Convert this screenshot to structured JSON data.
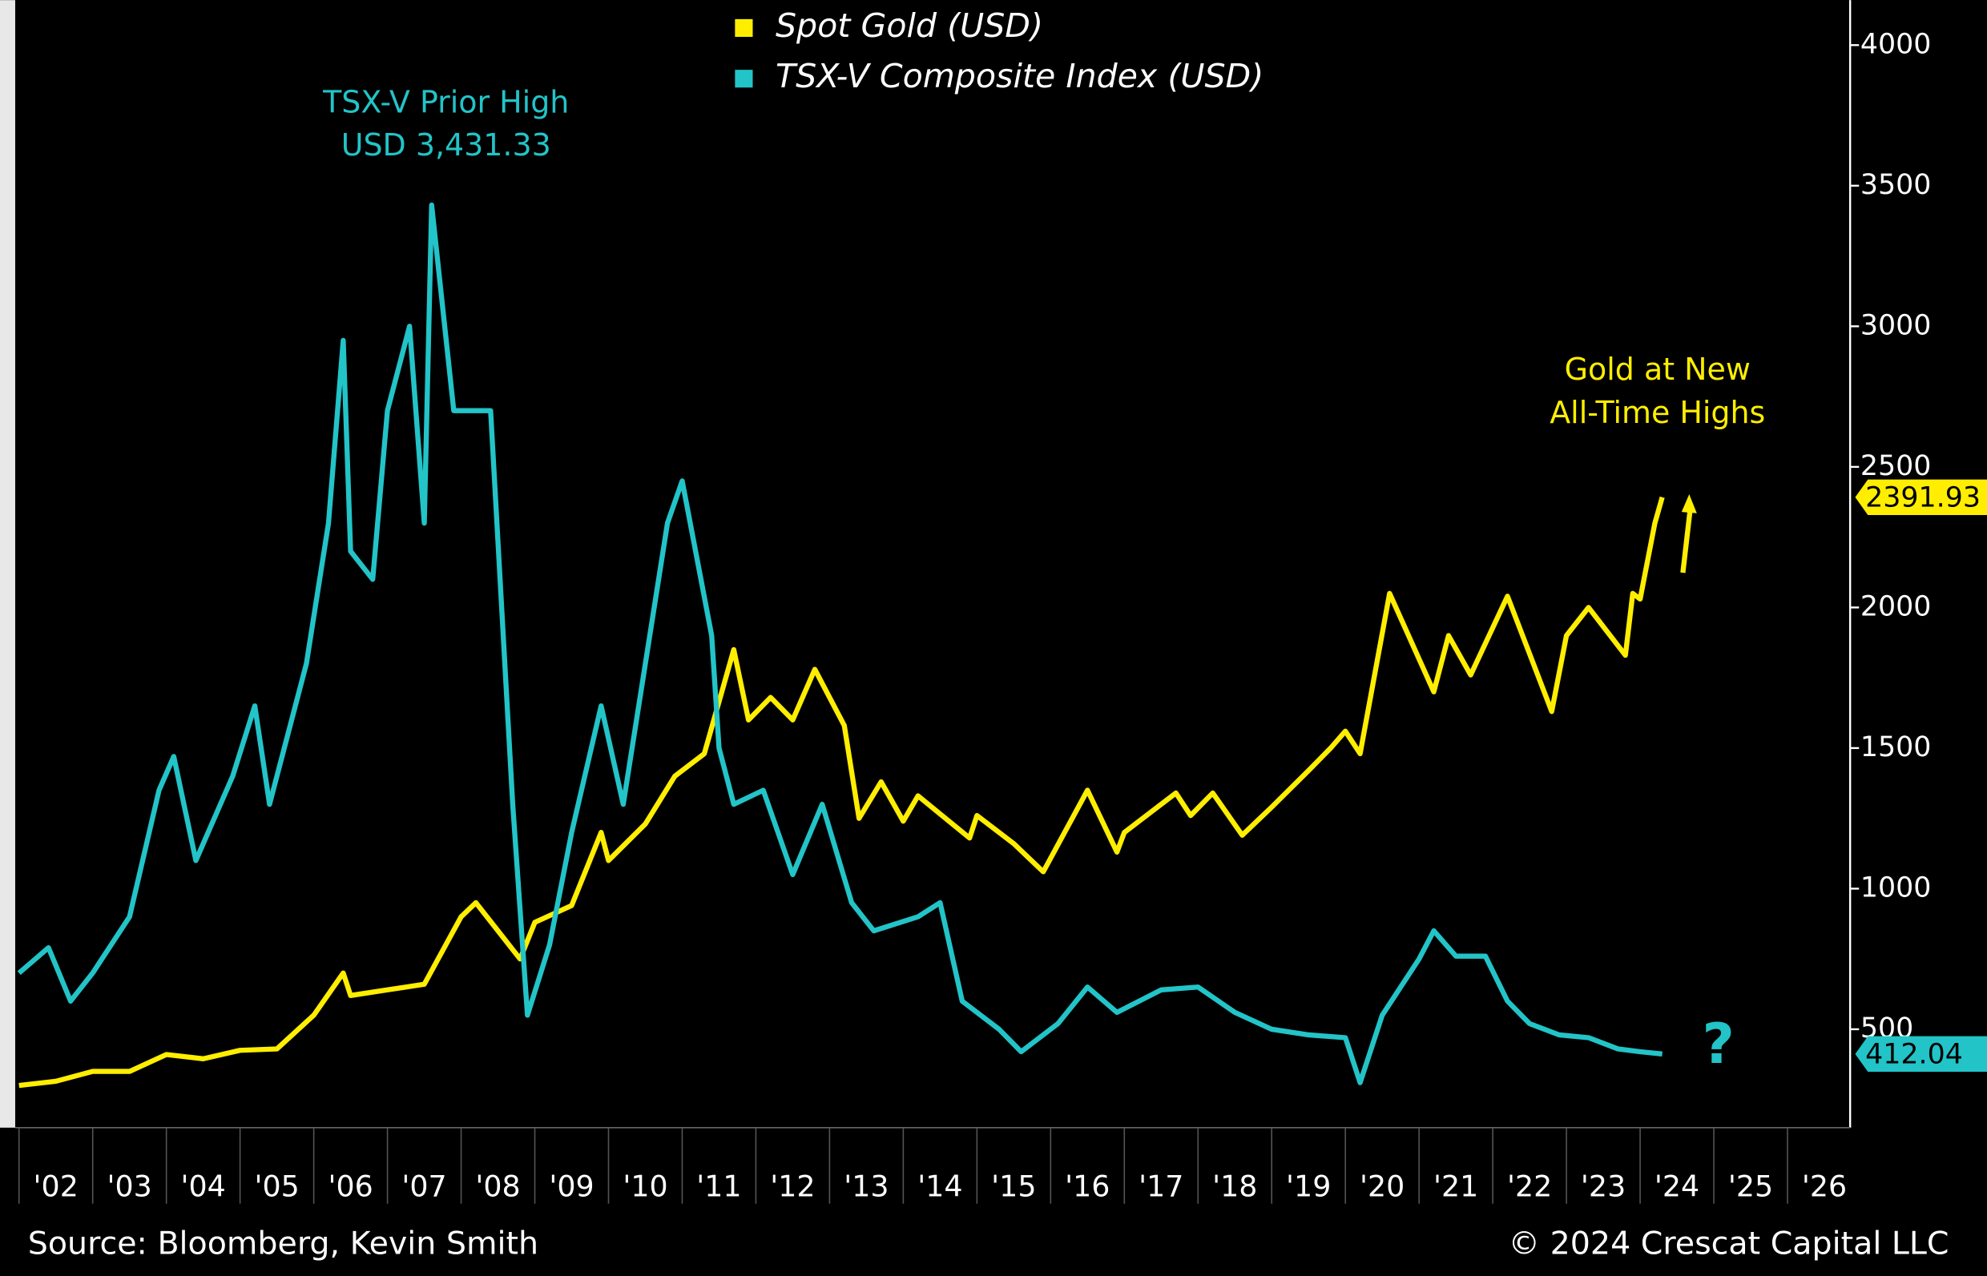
{
  "chart_data": {
    "type": "line",
    "series": [
      {
        "name": "Spot Gold (USD)",
        "color": "#ffee00",
        "x": [
          2002.0,
          2002.5,
          2003.0,
          2003.5,
          2004.0,
          2004.5,
          2005.0,
          2005.5,
          2006.0,
          2006.4,
          2006.5,
          2007.0,
          2007.5,
          2008.0,
          2008.2,
          2008.8,
          2009.0,
          2009.5,
          2009.9,
          2010.0,
          2010.5,
          2010.9,
          2011.3,
          2011.7,
          2011.9,
          2012.2,
          2012.5,
          2012.8,
          2013.2,
          2013.4,
          2013.7,
          2014.0,
          2014.2,
          2014.9,
          2015.0,
          2015.5,
          2015.9,
          2016.5,
          2016.9,
          2017.0,
          2017.7,
          2017.9,
          2018.2,
          2018.6,
          2019.0,
          2019.5,
          2019.8,
          2020.0,
          2020.2,
          2020.6,
          2021.2,
          2021.4,
          2021.7,
          2022.2,
          2022.8,
          2023.0,
          2023.3,
          2023.8,
          2023.9,
          2024.0,
          2024.2,
          2024.3
        ],
        "values": [
          300,
          315,
          350,
          350,
          410,
          395,
          425,
          430,
          550,
          700,
          620,
          640,
          660,
          900,
          950,
          750,
          880,
          940,
          1200,
          1100,
          1230,
          1400,
          1480,
          1850,
          1600,
          1680,
          1600,
          1780,
          1580,
          1250,
          1380,
          1240,
          1330,
          1180,
          1260,
          1160,
          1060,
          1350,
          1130,
          1200,
          1340,
          1260,
          1340,
          1190,
          1290,
          1420,
          1500,
          1560,
          1480,
          2050,
          1700,
          1900,
          1760,
          2040,
          1630,
          1900,
          2000,
          1830,
          2050,
          2030,
          2300,
          2391.93
        ]
      },
      {
        "name": "TSX-V Composite Index (USD)",
        "color": "#22c4c8",
        "x": [
          2002.0,
          2002.4,
          2002.7,
          2003.0,
          2003.5,
          2003.9,
          2004.1,
          2004.4,
          2004.9,
          2005.2,
          2005.4,
          2005.9,
          2006.2,
          2006.4,
          2006.5,
          2006.8,
          2007.0,
          2007.3,
          2007.5,
          2007.6,
          2007.9,
          2008.4,
          2008.7,
          2008.9,
          2009.2,
          2009.5,
          2009.9,
          2010.2,
          2010.8,
          2011.0,
          2011.4,
          2011.5,
          2011.7,
          2012.1,
          2012.5,
          2012.9,
          2013.3,
          2013.6,
          2014.2,
          2014.5,
          2014.8,
          2015.3,
          2015.6,
          2016.1,
          2016.5,
          2016.9,
          2017.5,
          2018.0,
          2018.5,
          2019.0,
          2019.5,
          2020.0,
          2020.2,
          2020.5,
          2021.0,
          2021.2,
          2021.5,
          2021.9,
          2022.2,
          2022.5,
          2022.9,
          2023.3,
          2023.7,
          2024.0,
          2024.3
        ],
        "values": [
          700,
          790,
          600,
          700,
          900,
          1350,
          1470,
          1100,
          1400,
          1650,
          1300,
          1800,
          2300,
          2950,
          2200,
          2100,
          2700,
          3000,
          2300,
          3431.33,
          2700,
          2700,
          1300,
          550,
          800,
          1200,
          1650,
          1300,
          2300,
          2450,
          1900,
          1500,
          1300,
          1350,
          1050,
          1300,
          950,
          850,
          900,
          950,
          600,
          500,
          420,
          520,
          650,
          560,
          640,
          650,
          560,
          500,
          480,
          470,
          310,
          550,
          750,
          850,
          760,
          760,
          600,
          520,
          480,
          470,
          430,
          420,
          412.04
        ]
      }
    ],
    "xlim": [
      2002,
      2026.85
    ],
    "xticks": [
      2002,
      2003,
      2004,
      2005,
      2006,
      2007,
      2008,
      2009,
      2010,
      2011,
      2012,
      2013,
      2014,
      2015,
      2016,
      2017,
      2018,
      2019,
      2020,
      2021,
      2022,
      2023,
      2024,
      2025,
      2026
    ],
    "categories": [
      "'02",
      "'03",
      "'04",
      "'05",
      "'06",
      "'07",
      "'08",
      "'09",
      "'10",
      "'11",
      "'12",
      "'13",
      "'14",
      "'15",
      "'16",
      "'17",
      "'18",
      "'19",
      "'20",
      "'21",
      "'22",
      "'23",
      "'24",
      "'25",
      "'26"
    ],
    "ylim": [
      150,
      4160
    ],
    "yticks": [
      500,
      1000,
      1500,
      2000,
      2500,
      3000,
      3500,
      4000
    ],
    "legend": "top",
    "annotations": [
      {
        "lines": [
          "TSX-V Prior High",
          "USD 3,431.33"
        ],
        "color": "#22c4c8"
      },
      {
        "lines": [
          "Gold at New",
          "All-Time Highs"
        ],
        "color": "#ffee00"
      },
      {
        "lines": [
          "?"
        ],
        "color": "#22c4c8"
      }
    ],
    "source": "Source: Bloomberg, Kevin Smith",
    "copyright": "© 2024 Crescat Capital LLC"
  }
}
